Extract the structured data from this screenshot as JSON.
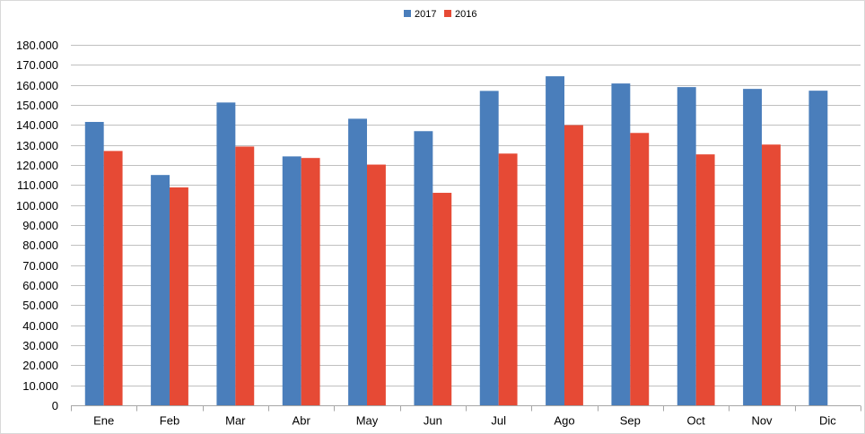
{
  "chart_data": {
    "type": "bar",
    "title": "",
    "xlabel": "",
    "ylabel": "",
    "categories": [
      "Ene",
      "Feb",
      "Mar",
      "Abr",
      "May",
      "Jun",
      "Jul",
      "Ago",
      "Sep",
      "Oct",
      "Nov",
      "Dic"
    ],
    "series": [
      {
        "name": "2017",
        "color": "#4a7ebb",
        "values": [
          141500,
          115000,
          151200,
          124300,
          143100,
          136900,
          157000,
          164300,
          160700,
          158900,
          158000,
          157100
        ]
      },
      {
        "name": "2016",
        "color": "#e64a35",
        "values": [
          127000,
          108800,
          129200,
          123500,
          120200,
          106100,
          125700,
          139900,
          136000,
          125300,
          130200,
          null
        ]
      }
    ],
    "ylim": [
      0,
      180000
    ],
    "yticks": [
      {
        "value": 0,
        "label": "0"
      },
      {
        "value": 10000,
        "label": "10.000"
      },
      {
        "value": 20000,
        "label": "20.000"
      },
      {
        "value": 30000,
        "label": "30.000"
      },
      {
        "value": 40000,
        "label": "40.000"
      },
      {
        "value": 50000,
        "label": "50.000"
      },
      {
        "value": 60000,
        "label": "60.000"
      },
      {
        "value": 70000,
        "label": "70.000"
      },
      {
        "value": 80000,
        "label": "80.000"
      },
      {
        "value": 90000,
        "label": "90.000"
      },
      {
        "value": 100000,
        "label": "100.000"
      },
      {
        "value": 110000,
        "label": "110.000"
      },
      {
        "value": 120000,
        "label": "120.000"
      },
      {
        "value": 130000,
        "label": "130.000"
      },
      {
        "value": 140000,
        "label": "140.000"
      },
      {
        "value": 150000,
        "label": "150.000"
      },
      {
        "value": 160000,
        "label": "160.000"
      },
      {
        "value": 170000,
        "label": "170.000"
      },
      {
        "value": 180000,
        "label": "180.000"
      }
    ],
    "grid": true,
    "legend_position": "top-center"
  }
}
